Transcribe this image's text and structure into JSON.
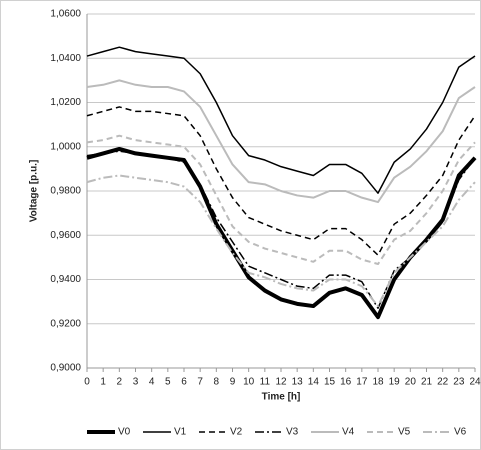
{
  "chart_data": {
    "type": "line",
    "x_label": "Time [h]",
    "y_label": "Voltage [p.u.]",
    "x": [
      0,
      1,
      2,
      3,
      4,
      5,
      6,
      7,
      8,
      9,
      10,
      11,
      12,
      13,
      14,
      15,
      16,
      17,
      18,
      19,
      20,
      21,
      22,
      23,
      24
    ],
    "xlim": [
      0,
      24
    ],
    "xticks": [
      0,
      1,
      2,
      3,
      4,
      5,
      6,
      7,
      8,
      9,
      10,
      11,
      12,
      13,
      14,
      15,
      16,
      17,
      18,
      19,
      20,
      21,
      22,
      23,
      24
    ],
    "ylim": [
      0.9,
      1.06
    ],
    "yticks": [
      {
        "value": 0.9,
        "label": "0,9000"
      },
      {
        "value": 0.92,
        "label": "0,9200"
      },
      {
        "value": 0.94,
        "label": "0,9400"
      },
      {
        "value": 0.96,
        "label": "0,9600"
      },
      {
        "value": 0.98,
        "label": "0,9800"
      },
      {
        "value": 1.0,
        "label": "1,0000"
      },
      {
        "value": 1.02,
        "label": "1,0200"
      },
      {
        "value": 1.04,
        "label": "1,0400"
      },
      {
        "value": 1.06,
        "label": "1,0600"
      }
    ],
    "grid": true,
    "legend": "bottom",
    "series": [
      {
        "name": "V0",
        "color": "#000000",
        "line_style": "solid",
        "line_width": 4,
        "values": [
          0.995,
          0.997,
          0.999,
          0.997,
          0.996,
          0.995,
          0.994,
          0.982,
          0.965,
          0.953,
          0.941,
          0.935,
          0.931,
          0.929,
          0.928,
          0.934,
          0.936,
          0.933,
          0.923,
          0.94,
          0.95,
          0.958,
          0.967,
          0.987,
          0.995
        ]
      },
      {
        "name": "V1",
        "color": "#000000",
        "line_style": "solid",
        "line_width": 1.5,
        "values": [
          1.041,
          1.043,
          1.045,
          1.043,
          1.042,
          1.041,
          1.04,
          1.033,
          1.02,
          1.005,
          0.996,
          0.994,
          0.991,
          0.989,
          0.987,
          0.992,
          0.992,
          0.988,
          0.979,
          0.993,
          0.999,
          1.008,
          1.02,
          1.036,
          1.041
        ]
      },
      {
        "name": "V2",
        "color": "#000000",
        "line_style": "dashed",
        "line_width": 1.5,
        "values": [
          1.014,
          1.016,
          1.018,
          1.016,
          1.016,
          1.015,
          1.014,
          1.005,
          0.99,
          0.977,
          0.968,
          0.965,
          0.962,
          0.96,
          0.958,
          0.963,
          0.963,
          0.958,
          0.951,
          0.965,
          0.97,
          0.978,
          0.987,
          1.003,
          1.014
        ]
      },
      {
        "name": "V3",
        "color": "#000000",
        "line_style": "dashdot",
        "line_width": 1.5,
        "values": [
          0.996,
          0.997,
          0.998,
          0.997,
          0.996,
          0.995,
          0.993,
          0.983,
          0.968,
          0.957,
          0.946,
          0.943,
          0.94,
          0.937,
          0.936,
          0.942,
          0.942,
          0.939,
          0.927,
          0.944,
          0.95,
          0.957,
          0.966,
          0.985,
          0.995
        ]
      },
      {
        "name": "V4",
        "color": "#bbbbbb",
        "line_style": "solid",
        "line_width": 2,
        "values": [
          1.027,
          1.028,
          1.03,
          1.028,
          1.027,
          1.027,
          1.025,
          1.018,
          1.005,
          0.992,
          0.984,
          0.983,
          0.98,
          0.978,
          0.977,
          0.98,
          0.98,
          0.977,
          0.975,
          0.986,
          0.991,
          0.998,
          1.007,
          1.022,
          1.027
        ]
      },
      {
        "name": "V5",
        "color": "#bbbbbb",
        "line_style": "dashed",
        "line_width": 2,
        "values": [
          1.002,
          1.003,
          1.005,
          1.003,
          1.002,
          1.001,
          1.0,
          0.992,
          0.978,
          0.964,
          0.957,
          0.954,
          0.952,
          0.95,
          0.948,
          0.953,
          0.953,
          0.949,
          0.947,
          0.958,
          0.962,
          0.97,
          0.98,
          0.994,
          1.002
        ]
      },
      {
        "name": "V6",
        "color": "#bbbbbb",
        "line_style": "dashdot",
        "line_width": 2,
        "values": [
          0.984,
          0.986,
          0.987,
          0.986,
          0.985,
          0.984,
          0.982,
          0.975,
          0.963,
          0.952,
          0.943,
          0.941,
          0.938,
          0.936,
          0.935,
          0.94,
          0.94,
          0.937,
          0.928,
          0.943,
          0.95,
          0.957,
          0.964,
          0.976,
          0.984
        ]
      }
    ]
  }
}
